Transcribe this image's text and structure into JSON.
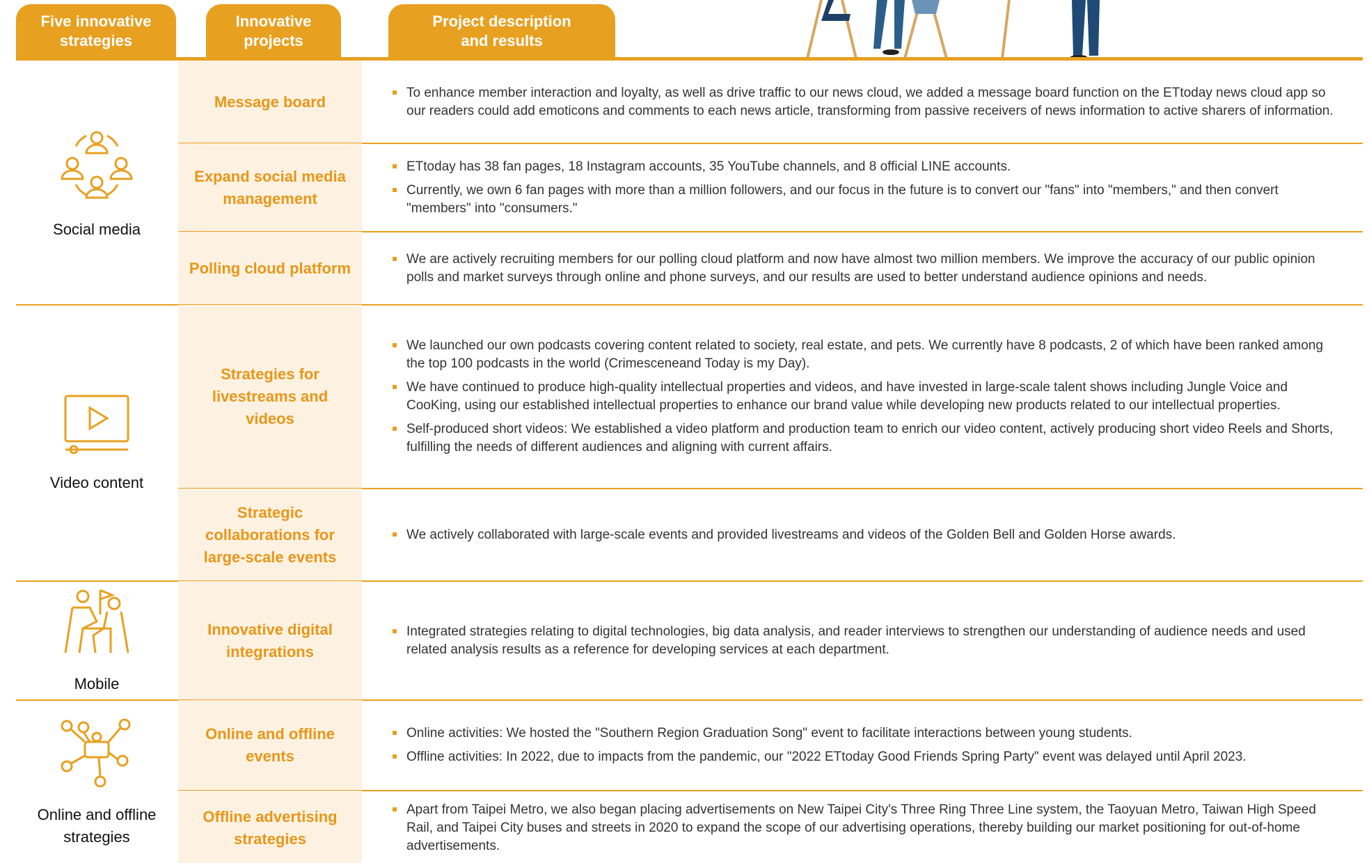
{
  "header": {
    "columns": [
      "Five innovative strategies",
      "Innovative projects",
      "Project description and results"
    ]
  },
  "groups": [
    {
      "strategy": "Social media",
      "projects": [
        {
          "name": "Message board",
          "items": [
            "To enhance member interaction and loyalty, as well as drive traffic to our news cloud, we added a message board function on the ETtoday news cloud app so our readers could add emoticons and comments to each news article, transforming from passive receivers of news information to active sharers of information."
          ]
        },
        {
          "name": "Expand social media management",
          "items": [
            "ETtoday has 38 fan pages, 18 Instagram accounts, 35 YouTube channels, and 8 official LINE accounts.",
            "Currently, we own 6 fan pages with more than a million followers, and our focus in the future is to convert our \"fans\" into \"members,\" and then convert \"members\" into \"consumers.\""
          ]
        },
        {
          "name": "Polling cloud platform",
          "items": [
            "We are actively recruiting members for our polling cloud platform and now have almost two million members. We improve the accuracy of our public opinion polls and market surveys through online and phone surveys, and our results are used to better understand audience opinions and needs."
          ]
        }
      ]
    },
    {
      "strategy": "Video content",
      "projects": [
        {
          "name": "Strategies for livestreams and videos",
          "items": [
            "We launched our own podcasts covering content related to society, real estate, and pets. We currently have 8 podcasts, 2 of which have been ranked among the top 100 podcasts in the world (Crimesceneand Today is my Day).",
            "We have continued to produce high-quality intellectual properties and videos, and have invested in large-scale talent shows including Jungle Voice and CooKing, using our established intellectual properties to enhance our brand value while developing new products related to our intellectual properties.",
            "Self-produced short videos: We established a video platform and production team to enrich our video content, actively producing short video Reels and Shorts, fulfilling the needs of different audiences and aligning with current affairs."
          ]
        },
        {
          "name": "Strategic collaborations for large-scale events",
          "items": [
            "We actively collaborated with large-scale events and provided livestreams and videos of the Golden Bell and Golden Horse awards."
          ]
        }
      ]
    },
    {
      "strategy": "Mobile",
      "projects": [
        {
          "name": "Innovative digital integrations",
          "items": [
            "Integrated strategies relating to digital technologies, big data analysis, and reader interviews to strengthen our understanding of audience needs and used related analysis results as a reference for developing services at each department."
          ]
        }
      ]
    },
    {
      "strategy": "Online and offline strategies",
      "projects": [
        {
          "name": "Online and offline events",
          "items": [
            "Online activities: We hosted the \"Southern Region Graduation Song\" event to facilitate interactions between young students.",
            "Offline activities: In 2022, due to impacts from the pandemic, our \"2022 ETtoday Good Friends Spring Party\" event was delayed until April 2023."
          ]
        },
        {
          "name": "Offline advertising strategies",
          "items": [
            "Apart from Taipei Metro, we also began placing advertisements on New Taipei City's Three Ring Three Line system, the Taoyuan Metro, Taiwan High Speed Rail, and Taipei City buses and streets in 2020 to expand the scope of our advertising operations, thereby building our market positioning for out-of-home advertisements."
          ]
        }
      ]
    }
  ]
}
